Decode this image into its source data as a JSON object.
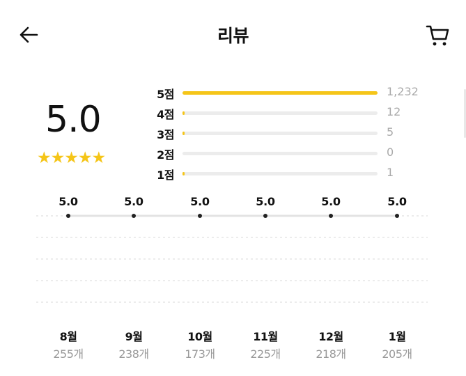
{
  "header": {
    "title": "리뷰",
    "back_icon": "arrow-left-icon",
    "cart_icon": "cart-icon"
  },
  "summary": {
    "average": "5.0",
    "stars": "★★★★★",
    "star_color": "#f5c518"
  },
  "distribution": [
    {
      "label": "5점",
      "count": "1,232",
      "value": 1232
    },
    {
      "label": "4점",
      "count": "12",
      "value": 12
    },
    {
      "label": "3점",
      "count": "5",
      "value": 5
    },
    {
      "label": "2점",
      "count": "0",
      "value": 0
    },
    {
      "label": "1점",
      "count": "1",
      "value": 1
    }
  ],
  "chart_data": {
    "type": "line",
    "categories": [
      "8월",
      "9월",
      "10월",
      "11월",
      "12월",
      "1월"
    ],
    "values": [
      5.0,
      5.0,
      5.0,
      5.0,
      5.0,
      5.0
    ],
    "value_labels": [
      "5.0",
      "5.0",
      "5.0",
      "5.0",
      "5.0",
      "5.0"
    ],
    "counts": [
      "255개",
      "238개",
      "173개",
      "225개",
      "218개",
      "205개"
    ],
    "ylim": [
      1,
      5
    ],
    "grid": true
  }
}
